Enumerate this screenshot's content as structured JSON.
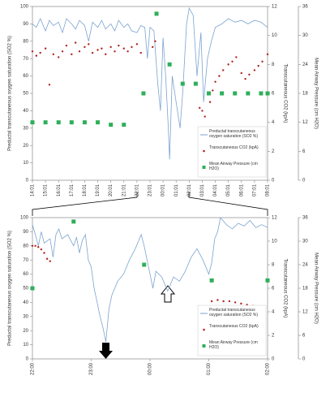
{
  "chart_data": [
    {
      "type": "line",
      "ylabel": "Preductal transcutaneous oxygen saturation (SO2 %)",
      "y2label": "Transcutaneous CO2 (kpA)",
      "y3label": "Mean Airway Pressure (cm H2O)",
      "xlim": [
        0,
        18
      ],
      "xticks": [
        {
          "value": 0,
          "label": "14:01"
        },
        {
          "value": 1,
          "label": "15:01"
        },
        {
          "value": 2,
          "label": "16:01"
        },
        {
          "value": 3,
          "label": "17:01"
        },
        {
          "value": 4,
          "label": "18:01"
        },
        {
          "value": 5,
          "label": "19:01"
        },
        {
          "value": 6,
          "label": "20:01"
        },
        {
          "value": 7,
          "label": "21:01"
        },
        {
          "value": 8,
          "label": "22:01"
        },
        {
          "value": 9,
          "label": "23:01"
        },
        {
          "value": 10,
          "label": "00:01"
        },
        {
          "value": 11,
          "label": "01:01"
        },
        {
          "value": 12,
          "label": "02:01"
        },
        {
          "value": 13,
          "label": "03:01"
        },
        {
          "value": 14,
          "label": "04:01"
        },
        {
          "value": 15,
          "label": "05:01"
        },
        {
          "value": 16,
          "label": "06:01"
        },
        {
          "value": 17,
          "label": "07:01"
        },
        {
          "value": 18,
          "label": "08:01"
        }
      ],
      "ylim": [
        0,
        100
      ],
      "yticks": [
        0,
        10,
        20,
        30,
        40,
        50,
        60,
        70,
        80,
        90,
        100
      ],
      "y2lim": [
        0,
        12
      ],
      "y2ticks": [
        0,
        2,
        4,
        6,
        8,
        10,
        12
      ],
      "y3lim": [
        0,
        36
      ],
      "y3ticks": [
        0,
        6,
        12,
        18,
        24,
        30,
        36
      ],
      "series": [
        {
          "name": "Preductal transcutaneous oxygen saturation (SO2 %)",
          "color": "#7ba3d0",
          "axis": "y",
          "marker": "line",
          "x": [
            0,
            0.3,
            0.6,
            1,
            1.3,
            1.6,
            2,
            2.3,
            2.6,
            3,
            3.3,
            3.6,
            4,
            4.3,
            4.6,
            5,
            5.3,
            5.6,
            6,
            6.3,
            6.6,
            7,
            7.3,
            7.6,
            8,
            8.3,
            8.6,
            8.8,
            9,
            9.3,
            9.6,
            9.8,
            10,
            10.2,
            10.4,
            10.5,
            10.7,
            11,
            11.3,
            11.5,
            11.8,
            12,
            12.3,
            12.6,
            12.9,
            13.1,
            13.4,
            13.7,
            14,
            14.5,
            15,
            15.5,
            16,
            16.5,
            17,
            17.5,
            18
          ],
          "values": [
            90,
            88,
            93,
            86,
            92,
            89,
            91,
            85,
            93,
            90,
            87,
            92,
            89,
            80,
            91,
            88,
            92,
            87,
            90,
            86,
            92,
            88,
            90,
            86,
            85,
            89,
            88,
            70,
            88,
            86,
            55,
            40,
            82,
            60,
            30,
            12,
            60,
            45,
            30,
            50,
            90,
            99,
            95,
            60,
            85,
            45,
            70,
            80,
            88,
            90,
            93,
            91,
            92,
            90,
            92,
            91,
            88
          ]
        },
        {
          "name": "Transcutaneous CO2 (kpA)",
          "color": "#b22222",
          "axis": "y2",
          "marker": "dot",
          "x": [
            0,
            0.3,
            0.6,
            1,
            1.3,
            1.6,
            2,
            2.3,
            2.6,
            3,
            3.3,
            3.6,
            4,
            4.3,
            4.6,
            5,
            5.3,
            5.6,
            6,
            6.3,
            6.6,
            7,
            7.3,
            7.6,
            8,
            8.3,
            9.2,
            9.4,
            12.8,
            13,
            13.2,
            13.4,
            13.6,
            13.8,
            14,
            14.3,
            14.6,
            15,
            15.3,
            15.6,
            16,
            16.3,
            16.6,
            17,
            17.3,
            17.6,
            18
          ],
          "values": [
            8.9,
            8.6,
            8.8,
            9.1,
            6.6,
            8.7,
            8.5,
            8.9,
            9.3,
            8.7,
            9.5,
            8.9,
            9.2,
            9.4,
            8.8,
            9.0,
            9.1,
            8.7,
            9.2,
            8.9,
            9.3,
            9.1,
            8.9,
            9.2,
            9.4,
            8.8,
            9.2,
            9.6,
            5.0,
            4.8,
            4.4,
            3.6,
            5.4,
            6.2,
            6.8,
            7.2,
            7.6,
            8.0,
            8.2,
            8.5,
            7.4,
            7.0,
            7.3,
            7.6,
            7.9,
            8.2,
            8.7
          ]
        },
        {
          "name": "Mean Airway Pressure (cm H2O)",
          "color": "#2eaf5a",
          "axis": "y3",
          "marker": "square",
          "x": [
            0,
            1,
            2,
            3,
            4,
            5,
            6,
            7,
            8.5,
            9.5,
            10.5,
            11.5,
            12.5,
            13.5,
            14.5,
            15.5,
            16.5,
            17.5,
            18
          ],
          "values": [
            12,
            12,
            12,
            12,
            12,
            12,
            11.5,
            11.5,
            18,
            34.5,
            24,
            20,
            20,
            18,
            18,
            18,
            18,
            18,
            18
          ]
        }
      ]
    },
    {
      "type": "line",
      "ylabel": "Preductal transcutaneous oxygen saturation (SO2 %)",
      "y2label": "Transcutaneous CO2 (kpA)",
      "y3label": "Mean Airway Pressure (cm H2O)",
      "xlim": [
        0,
        4
      ],
      "xticks": [
        {
          "value": 0,
          "label": "22:00"
        },
        {
          "value": 1,
          "label": "23:00"
        },
        {
          "value": 2,
          "label": "00:00"
        },
        {
          "value": 3,
          "label": "01:00"
        },
        {
          "value": 4,
          "label": "02:00"
        }
      ],
      "ylim": [
        0,
        100
      ],
      "yticks": [
        0,
        10,
        20,
        30,
        40,
        50,
        60,
        70,
        80,
        90,
        100
      ],
      "y2lim": [
        0,
        12
      ],
      "y2ticks": [
        0,
        2,
        4,
        6,
        8,
        10,
        12
      ],
      "y3lim": [
        0,
        36
      ],
      "y3ticks": [
        0,
        6,
        12,
        18,
        24,
        30,
        36
      ],
      "series": [
        {
          "name": "Preductal transcutaneous oxygen saturation (SO2 %)",
          "color": "#7ba3d0",
          "axis": "y",
          "marker": "line",
          "x": [
            0,
            0.05,
            0.1,
            0.15,
            0.2,
            0.3,
            0.35,
            0.4,
            0.45,
            0.5,
            0.6,
            0.7,
            0.75,
            0.8,
            0.85,
            0.9,
            0.95,
            1.0,
            1.05,
            1.1,
            1.15,
            1.2,
            1.25,
            1.3,
            1.35,
            1.45,
            1.55,
            1.65,
            1.75,
            1.85,
            1.9,
            2.0,
            2.05,
            2.1,
            2.2,
            2.3,
            2.4,
            2.5,
            2.6,
            2.7,
            2.8,
            2.9,
            3.0,
            3.05,
            3.1,
            3.15,
            3.2,
            3.3,
            3.4,
            3.5,
            3.6,
            3.7,
            3.8,
            3.9,
            4.0
          ],
          "values": [
            95,
            88,
            80,
            90,
            82,
            85,
            72,
            88,
            92,
            85,
            88,
            80,
            86,
            75,
            84,
            88,
            70,
            65,
            50,
            40,
            30,
            22,
            12,
            35,
            45,
            55,
            60,
            70,
            78,
            88,
            80,
            60,
            50,
            62,
            58,
            48,
            58,
            55,
            62,
            72,
            78,
            70,
            60,
            68,
            85,
            90,
            100,
            95,
            92,
            96,
            94,
            98,
            93,
            95,
            93
          ]
        },
        {
          "name": "Transcutaneous CO2 (kpA)",
          "color": "#b22222",
          "axis": "y2",
          "marker": "dot",
          "x": [
            0,
            0.05,
            0.1,
            0.15,
            0.2,
            0.25,
            0.3,
            3.05,
            3.15,
            3.25,
            3.35,
            3.45,
            3.55,
            3.65,
            3.75,
            3.85,
            3.95
          ],
          "values": [
            9.6,
            9.6,
            9.5,
            9.3,
            9.0,
            8.5,
            8.3,
            4.9,
            5.0,
            4.9,
            4.9,
            4.8,
            4.7,
            4.6,
            4.5,
            4.4,
            4.2
          ]
        },
        {
          "name": "Mean Airway Pressure (cm H2O)",
          "color": "#2eaf5a",
          "axis": "y3",
          "marker": "square",
          "x": [
            0,
            0.7,
            1.9,
            3.05,
            4.0
          ],
          "values": [
            18,
            35,
            24,
            20,
            20
          ]
        }
      ]
    }
  ]
}
